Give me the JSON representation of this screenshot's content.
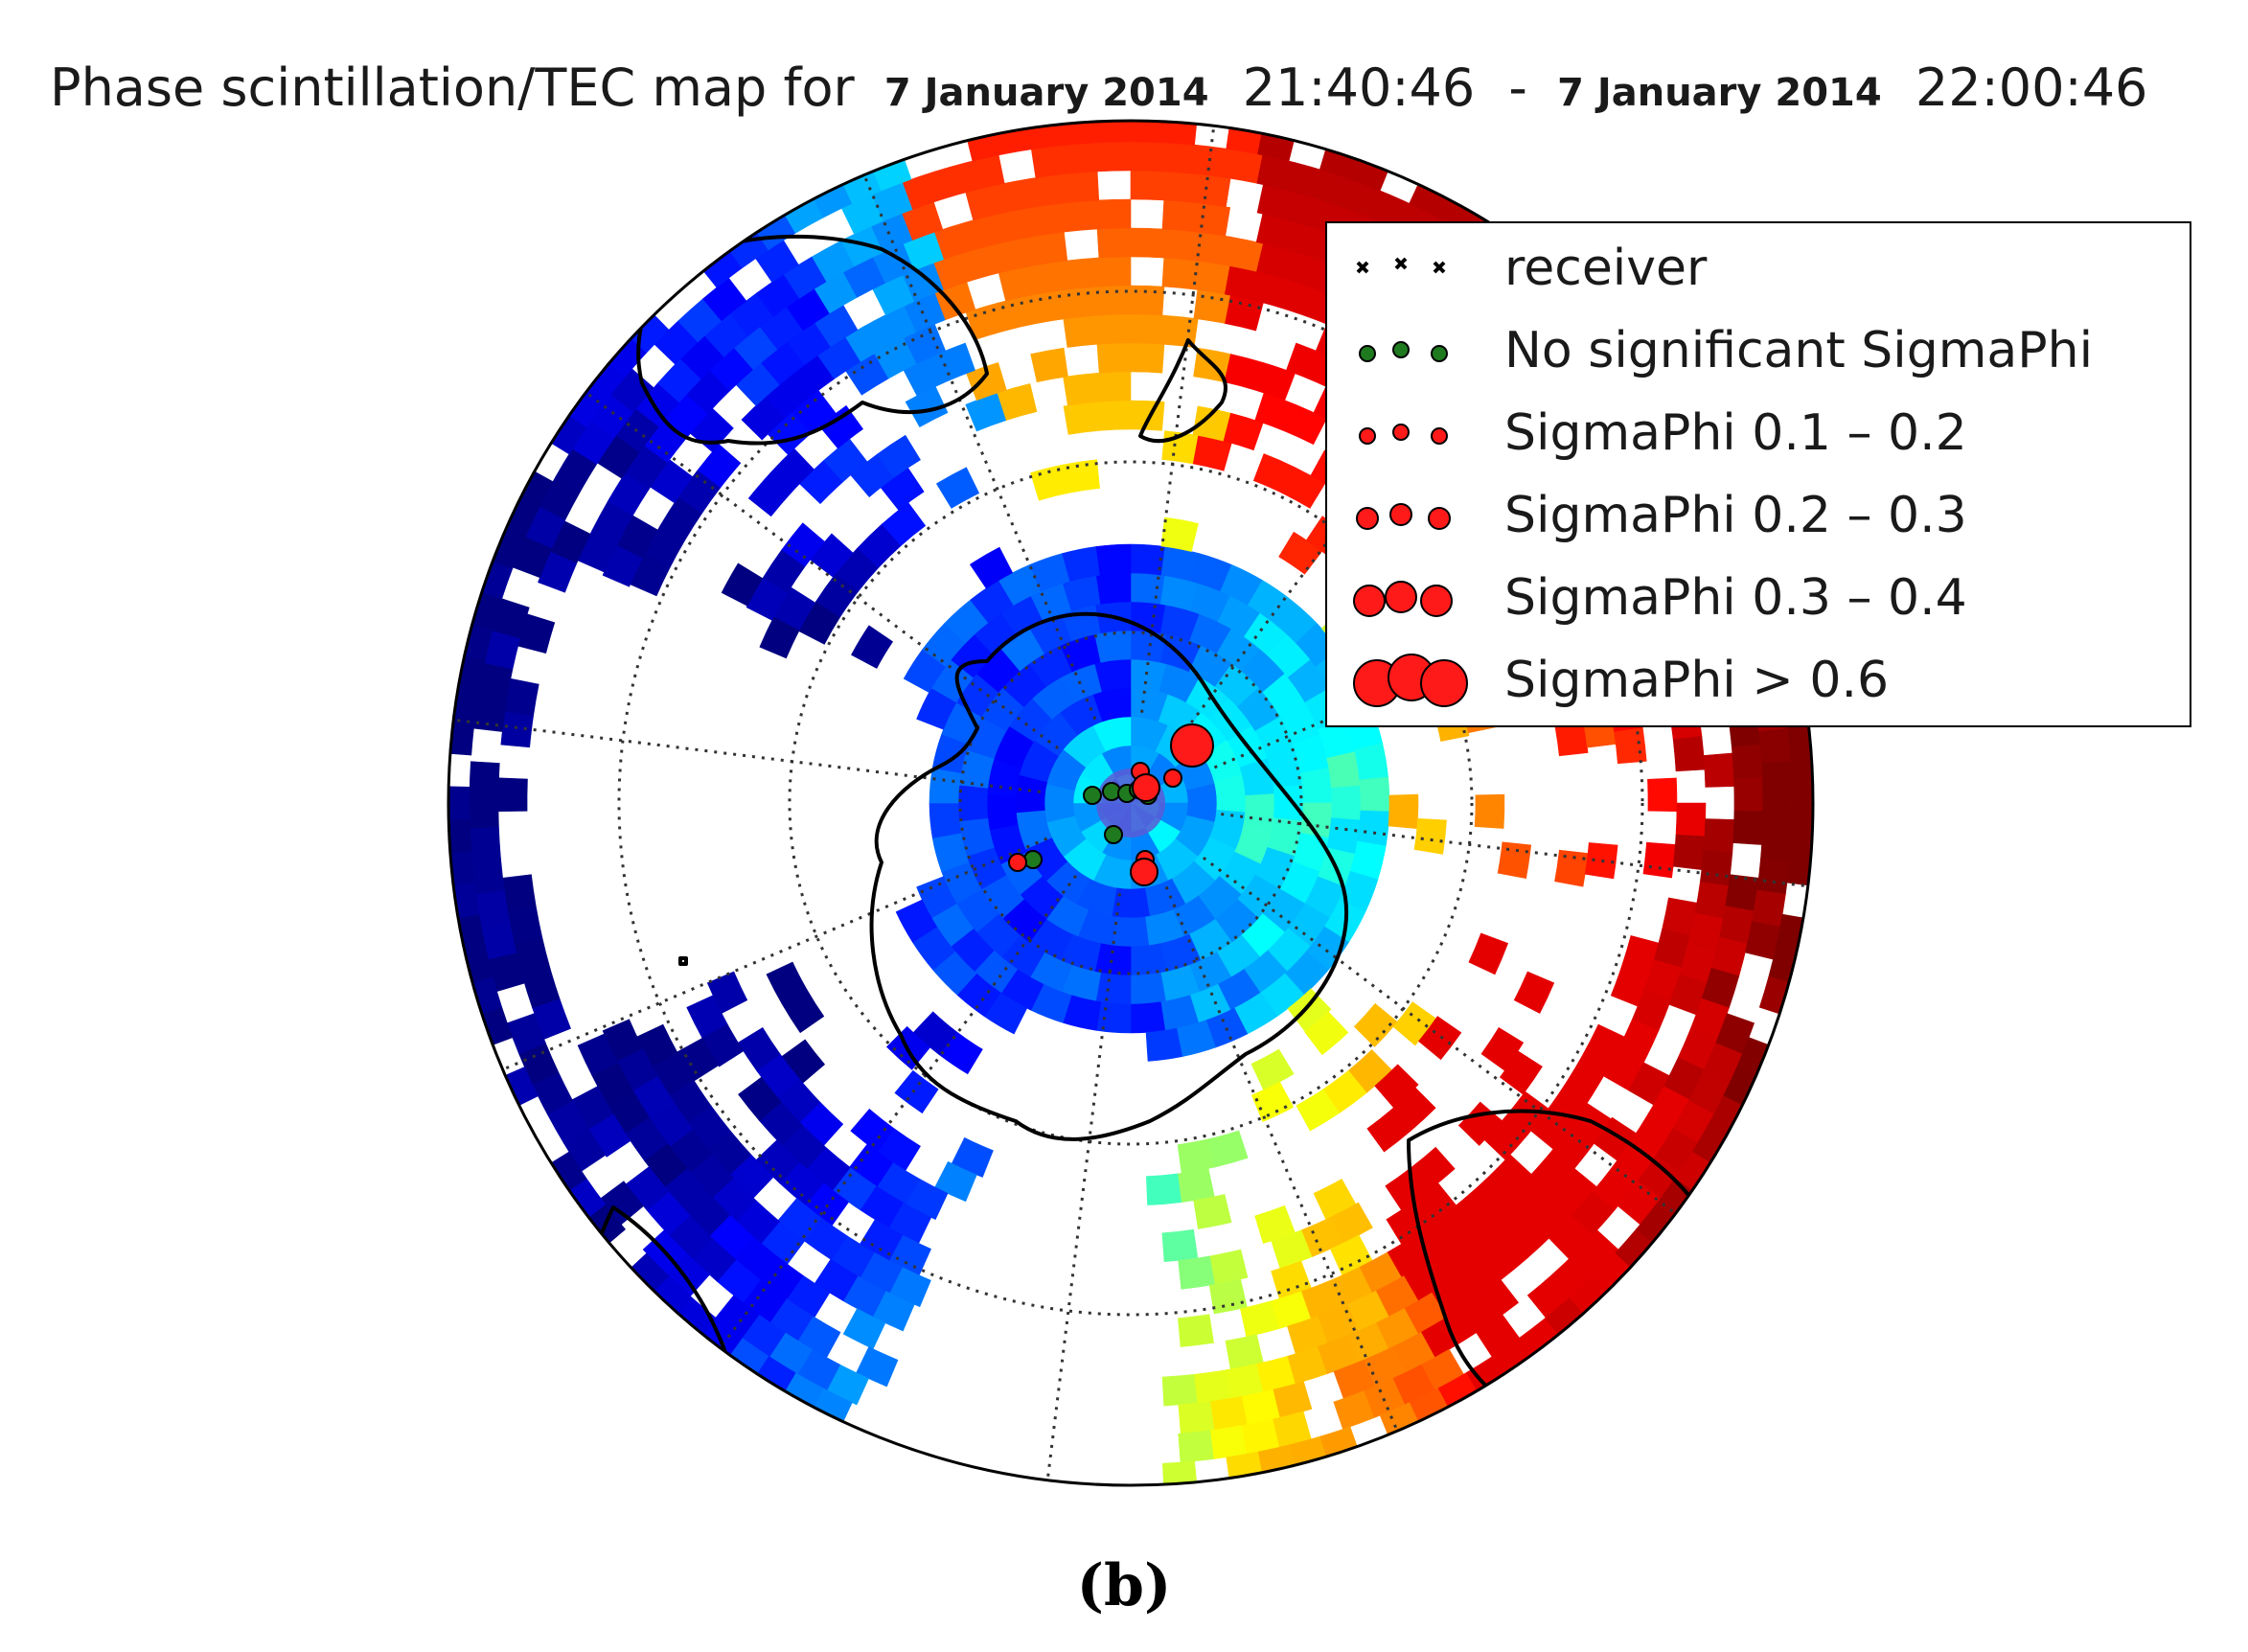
{
  "title": {
    "prefix": "Phase scintillation/TEC map for",
    "start_date": "7 January 2014",
    "start_time": "21:40:46",
    "separator": "-",
    "end_date": "7 January 2014",
    "end_time": "22:00:46"
  },
  "legend": {
    "items": [
      {
        "label": "receiver",
        "symbol": "x-icon",
        "color": "#000000"
      },
      {
        "label": "No significant SigmaPhi",
        "symbol": "green-dot-icon",
        "color": "#1f7a1f"
      },
      {
        "label": "SigmaPhi 0.1 – 0.2",
        "symbol": "red-dot-small-icon",
        "color": "#ff1a1a"
      },
      {
        "label": "SigmaPhi 0.2 – 0.3",
        "symbol": "red-dot-medium-icon",
        "color": "#ff1a1a"
      },
      {
        "label": "SigmaPhi 0.3 – 0.4",
        "symbol": "red-dot-large-icon",
        "color": "#ff1a1a"
      },
      {
        "label": "SigmaPhi > 0.6",
        "symbol": "red-dot-xlarge-icon",
        "color": "#ff1a1a"
      }
    ]
  },
  "map": {
    "projection": "orthographic, south polar",
    "colormap": "jet",
    "graticule": "dotted",
    "observations": [
      {
        "type": "no-significant",
        "count": 7
      },
      {
        "type": "sigmaphi-0.1-0.2",
        "count": 4
      },
      {
        "type": "sigmaphi-0.3-0.4",
        "count": 2
      },
      {
        "type": "sigmaphi-gt-0.6",
        "count": 1
      }
    ]
  },
  "caption": "(b)"
}
